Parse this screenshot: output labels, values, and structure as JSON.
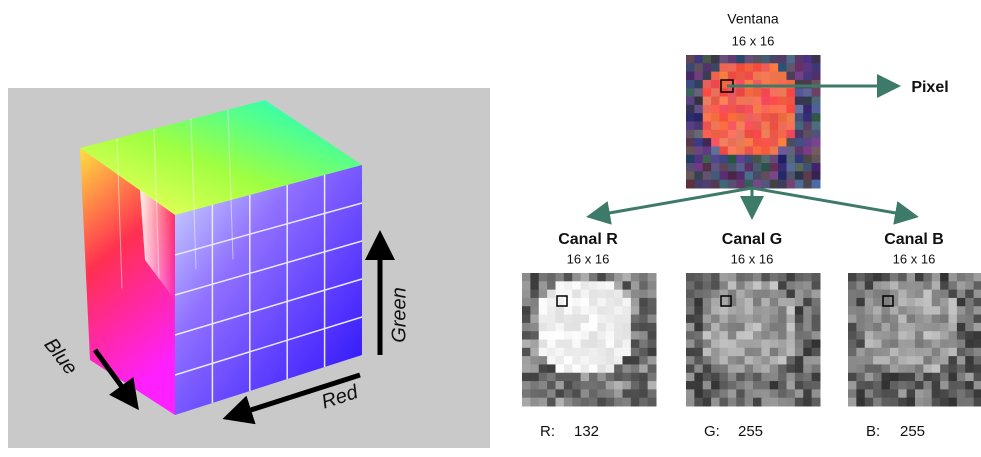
{
  "cube": {
    "axes": {
      "blue": "Blue",
      "red": "Red",
      "green": "Green"
    }
  },
  "window": {
    "title": "Ventana",
    "size": "16 x 16",
    "pixel_label": "Pixel"
  },
  "channels": [
    {
      "name": "Canal R",
      "size": "16 x 16",
      "label": "R:",
      "value": 132
    },
    {
      "name": "Canal G",
      "size": "16 x 16",
      "label": "G:",
      "value": 255
    },
    {
      "name": "Canal B",
      "size": "16 x 16",
      "label": "B:",
      "value": 255
    }
  ]
}
